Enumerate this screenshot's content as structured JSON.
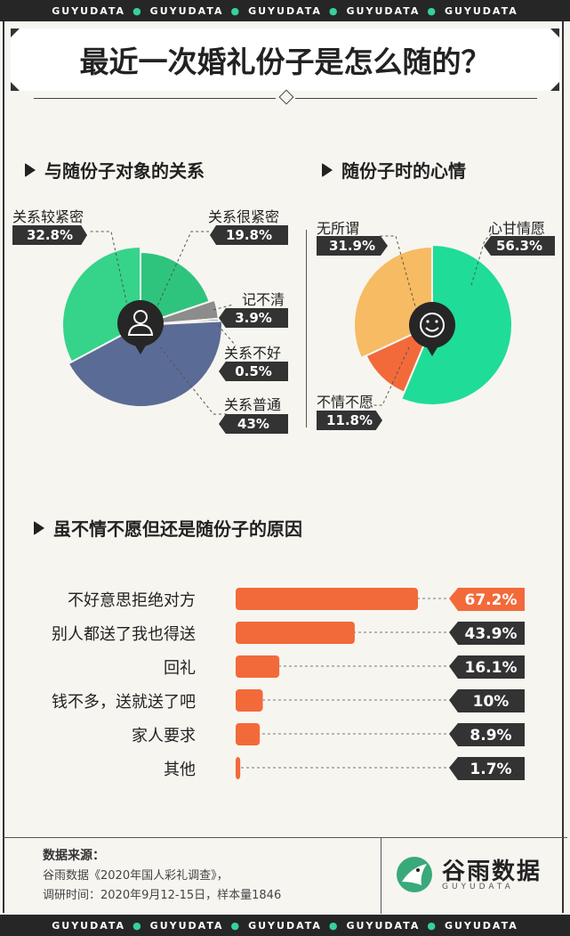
{
  "strip_items": [
    "GUYUDATA",
    "GUYUDATA",
    "GUYUDATA",
    "GUYUDATA",
    "GUYUDATA"
  ],
  "title": "最近一次婚礼份子是怎么随的？",
  "colors": {
    "green": "#35d48a",
    "green_dark": "#2fc47e",
    "blue": "#5a6b95",
    "gray": "#8c8c8c",
    "orange": "#f26a3a",
    "yellow": "#f6bb63",
    "mint": "#1fdc98",
    "dark": "#333333"
  },
  "chart_data": [
    {
      "type": "pie",
      "title": "与随份子对象的关系",
      "icon": "user-icon",
      "slices": [
        {
          "label": "关系很紧密",
          "value": 19.8,
          "display": "19.8%"
        },
        {
          "label": "记不清",
          "value": 3.9,
          "display": "3.9%"
        },
        {
          "label": "关系不好",
          "value": 0.5,
          "display": "0.5%"
        },
        {
          "label": "关系普通",
          "value": 43,
          "display": "43%"
        },
        {
          "label": "关系较紧密",
          "value": 32.8,
          "display": "32.8%"
        }
      ]
    },
    {
      "type": "pie",
      "title": "随份子时的心情",
      "icon": "smile-icon",
      "slices": [
        {
          "label": "心甘情愿",
          "value": 56.3,
          "display": "56.3%"
        },
        {
          "label": "不情不愿",
          "value": 11.8,
          "display": "11.8%"
        },
        {
          "label": "无所谓",
          "value": 31.9,
          "display": "31.9%"
        }
      ]
    },
    {
      "type": "bar",
      "title": "虽不情不愿但还是随份子的原因",
      "categories": [
        "不好意思拒绝对方",
        "别人都送了我也得送",
        "回礼",
        "钱不多，送就送了吧",
        "家人要求",
        "其他"
      ],
      "values": [
        67.2,
        43.9,
        16.1,
        10,
        8.9,
        1.7
      ],
      "value_labels": [
        "67.2%",
        "43.9%",
        "16.1%",
        "10%",
        "8.9%",
        "1.7%"
      ]
    }
  ],
  "footer": {
    "source_heading": "数据来源：",
    "source_line1": "谷雨数据《2020年国人彩礼调查》，",
    "source_line2": "调研时间：2020年9月12-15日，样本量1846",
    "logo_name": "谷雨数据",
    "logo_sub": "GUYUDATA"
  }
}
